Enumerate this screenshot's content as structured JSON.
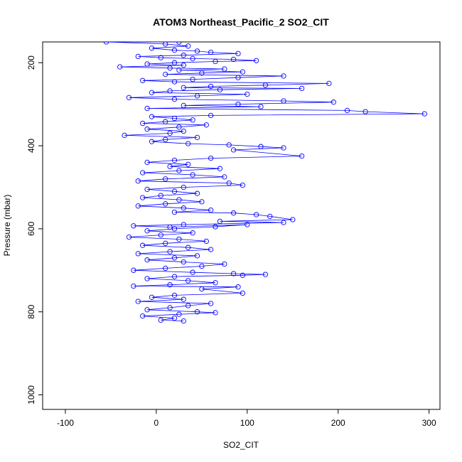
{
  "chart_data": {
    "type": "line",
    "title": "ATOM3 Northeast_Pacific_2 SO2_CIT",
    "xlabel": "SO2_CIT",
    "ylabel": "Pressure (mbar)",
    "xlim": [
      -125,
      312
    ],
    "ylim": [
      1035,
      150
    ],
    "y_reversed": true,
    "xticks": [
      -100,
      0,
      100,
      200,
      300
    ],
    "yticks": [
      200,
      400,
      600,
      800,
      1000
    ],
    "marker": "open-circle",
    "grid": false,
    "legend": "none",
    "color": "#0000ff",
    "series": [
      {
        "points": [
          [
            25,
            150
          ],
          [
            -55,
            150
          ],
          [
            10,
            155
          ],
          [
            35,
            160
          ],
          [
            -5,
            165
          ],
          [
            20,
            170
          ],
          [
            45,
            172
          ],
          [
            60,
            175
          ],
          [
            90,
            178
          ],
          [
            30,
            182
          ],
          [
            -20,
            185
          ],
          [
            5,
            188
          ],
          [
            40,
            190
          ],
          [
            85,
            192
          ],
          [
            110,
            195
          ],
          [
            65,
            197
          ],
          [
            20,
            200
          ],
          [
            -10,
            203
          ],
          [
            30,
            206
          ],
          [
            -40,
            210
          ],
          [
            15,
            213
          ],
          [
            75,
            215
          ],
          [
            25,
            218
          ],
          [
            95,
            222
          ],
          [
            50,
            225
          ],
          [
            10,
            228
          ],
          [
            140,
            232
          ],
          [
            90,
            236
          ],
          [
            40,
            240
          ],
          [
            -15,
            243
          ],
          [
            20,
            246
          ],
          [
            190,
            250
          ],
          [
            120,
            254
          ],
          [
            60,
            257
          ],
          [
            30,
            260
          ],
          [
            160,
            262
          ],
          [
            70,
            265
          ],
          [
            15,
            268
          ],
          [
            -5,
            272
          ],
          [
            100,
            276
          ],
          [
            45,
            280
          ],
          [
            -30,
            284
          ],
          [
            20,
            288
          ],
          [
            140,
            292
          ],
          [
            195,
            295
          ],
          [
            90,
            300
          ],
          [
            30,
            303
          ],
          [
            115,
            306
          ],
          [
            -10,
            310
          ],
          [
            210,
            315
          ],
          [
            230,
            318
          ],
          [
            295,
            323
          ],
          [
            60,
            327
          ],
          [
            -5,
            330
          ],
          [
            20,
            334
          ],
          [
            40,
            338
          ],
          [
            10,
            342
          ],
          [
            -15,
            346
          ],
          [
            55,
            350
          ],
          [
            25,
            355
          ],
          [
            -10,
            360
          ],
          [
            30,
            365
          ],
          [
            15,
            370
          ],
          [
            -35,
            375
          ],
          [
            45,
            380
          ],
          [
            10,
            385
          ],
          [
            -5,
            390
          ],
          [
            35,
            395
          ],
          [
            80,
            398
          ],
          [
            115,
            402
          ],
          [
            140,
            405
          ],
          [
            85,
            410
          ],
          [
            160,
            425
          ],
          [
            60,
            430
          ],
          [
            20,
            435
          ],
          [
            -10,
            440
          ],
          [
            35,
            445
          ],
          [
            15,
            450
          ],
          [
            70,
            455
          ],
          [
            25,
            460
          ],
          [
            -15,
            465
          ],
          [
            40,
            470
          ],
          [
            75,
            475
          ],
          [
            10,
            480
          ],
          [
            -20,
            485
          ],
          [
            80,
            490
          ],
          [
            95,
            495
          ],
          [
            30,
            500
          ],
          [
            -10,
            505
          ],
          [
            20,
            510
          ],
          [
            45,
            515
          ],
          [
            5,
            520
          ],
          [
            -15,
            525
          ],
          [
            25,
            530
          ],
          [
            50,
            535
          ],
          [
            10,
            540
          ],
          [
            -20,
            545
          ],
          [
            30,
            550
          ],
          [
            60,
            555
          ],
          [
            20,
            560
          ],
          [
            85,
            562
          ],
          [
            110,
            566
          ],
          [
            125,
            570
          ],
          [
            150,
            578
          ],
          [
            70,
            582
          ],
          [
            140,
            585
          ],
          [
            30,
            590
          ],
          [
            -25,
            593
          ],
          [
            15,
            596
          ],
          [
            100,
            590
          ],
          [
            65,
            595
          ],
          [
            20,
            600
          ],
          [
            -10,
            605
          ],
          [
            40,
            610
          ],
          [
            5,
            615
          ],
          [
            -30,
            620
          ],
          [
            25,
            625
          ],
          [
            55,
            630
          ],
          [
            10,
            635
          ],
          [
            -15,
            640
          ],
          [
            35,
            645
          ],
          [
            60,
            650
          ],
          [
            15,
            655
          ],
          [
            -20,
            660
          ],
          [
            45,
            665
          ],
          [
            20,
            670
          ],
          [
            -10,
            675
          ],
          [
            30,
            680
          ],
          [
            75,
            685
          ],
          [
            50,
            690
          ],
          [
            10,
            695
          ],
          [
            -25,
            700
          ],
          [
            40,
            705
          ],
          [
            85,
            708
          ],
          [
            120,
            710
          ],
          [
            95,
            712
          ],
          [
            20,
            715
          ],
          [
            -10,
            720
          ],
          [
            35,
            725
          ],
          [
            65,
            730
          ],
          [
            15,
            735
          ],
          [
            -25,
            738
          ],
          [
            90,
            740
          ],
          [
            50,
            745
          ],
          [
            95,
            755
          ],
          [
            20,
            760
          ],
          [
            -5,
            765
          ],
          [
            30,
            770
          ],
          [
            -20,
            775
          ],
          [
            60,
            780
          ],
          [
            35,
            785
          ],
          [
            15,
            790
          ],
          [
            -10,
            795
          ],
          [
            45,
            800
          ],
          [
            65,
            802
          ],
          [
            25,
            806
          ],
          [
            -15,
            810
          ],
          [
            20,
            815
          ],
          [
            5,
            820
          ],
          [
            30,
            822
          ]
        ]
      }
    ]
  }
}
